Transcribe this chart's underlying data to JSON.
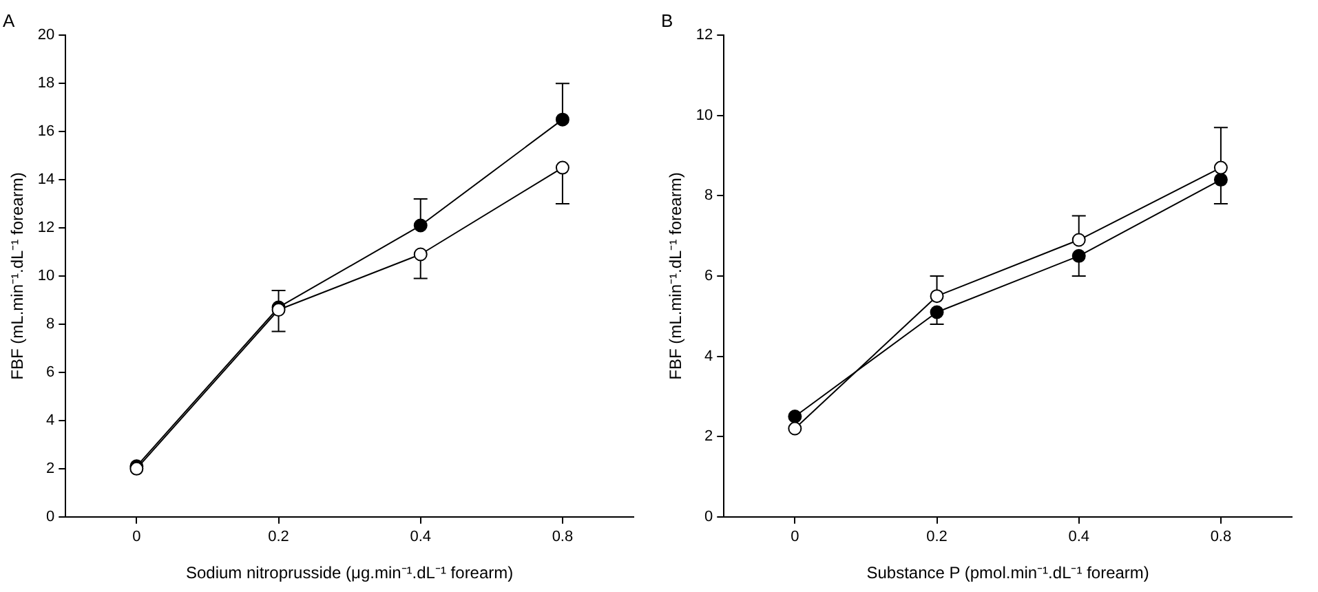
{
  "chart_data": [
    {
      "type": "line",
      "title": "A",
      "xlabel": "Sodium nitroprusside (μg.min⁻¹.dL⁻¹ forearm)",
      "ylabel": "FBF (mL.min⁻¹.dL⁻¹ forearm)",
      "categories": [
        "0",
        "0.2",
        "0.4",
        "0.8"
      ],
      "ylim": [
        0,
        20
      ],
      "yticks": [
        0,
        2,
        4,
        6,
        8,
        10,
        12,
        14,
        16,
        18,
        20
      ],
      "grid": false,
      "legend": false,
      "marker": "circle",
      "line_style": "solid",
      "series": [
        {
          "color": "#000000",
          "values": [
            2.1,
            8.7,
            12.1,
            16.5
          ],
          "errors": [
            null,
            [
              8.7,
              9.4
            ],
            [
              12.1,
              13.2
            ],
            [
              16.5,
              18
            ]
          ]
        },
        {
          "color": "#000000",
          "values": [
            2.0,
            8.6,
            10.9,
            14.5
          ],
          "errors": [
            null,
            [
              7.7,
              8.6
            ],
            [
              9.9,
              10.9
            ],
            [
              13.0,
              14.5
            ]
          ]
        }
      ]
    },
    {
      "type": "line",
      "title": "B",
      "xlabel": "Substance P (pmol.min⁻¹.dL⁻¹ forearm)",
      "ylabel": "FBF (mL.min⁻¹.dL⁻¹ forearm)",
      "categories": [
        "0",
        "0.2",
        "0.4",
        "0.8"
      ],
      "ylim": [
        0,
        12
      ],
      "yticks": [
        0,
        2,
        4,
        6,
        8,
        10,
        12
      ],
      "grid": false,
      "legend": false,
      "marker": "circle",
      "line_style": "solid",
      "series": [
        {
          "color": "#000000",
          "values": [
            2.5,
            5.1,
            6.5,
            8.4
          ],
          "errors": [
            null,
            [
              4.8,
              5.1
            ],
            [
              6.0,
              6.5
            ],
            [
              7.8,
              8.4
            ]
          ]
        },
        {
          "color": "#000000",
          "values": [
            2.2,
            5.5,
            6.9,
            8.7
          ],
          "errors": [
            null,
            [
              5.5,
              6.0
            ],
            [
              6.9,
              7.5
            ],
            [
              8.7,
              9.7
            ]
          ]
        }
      ]
    }
  ]
}
